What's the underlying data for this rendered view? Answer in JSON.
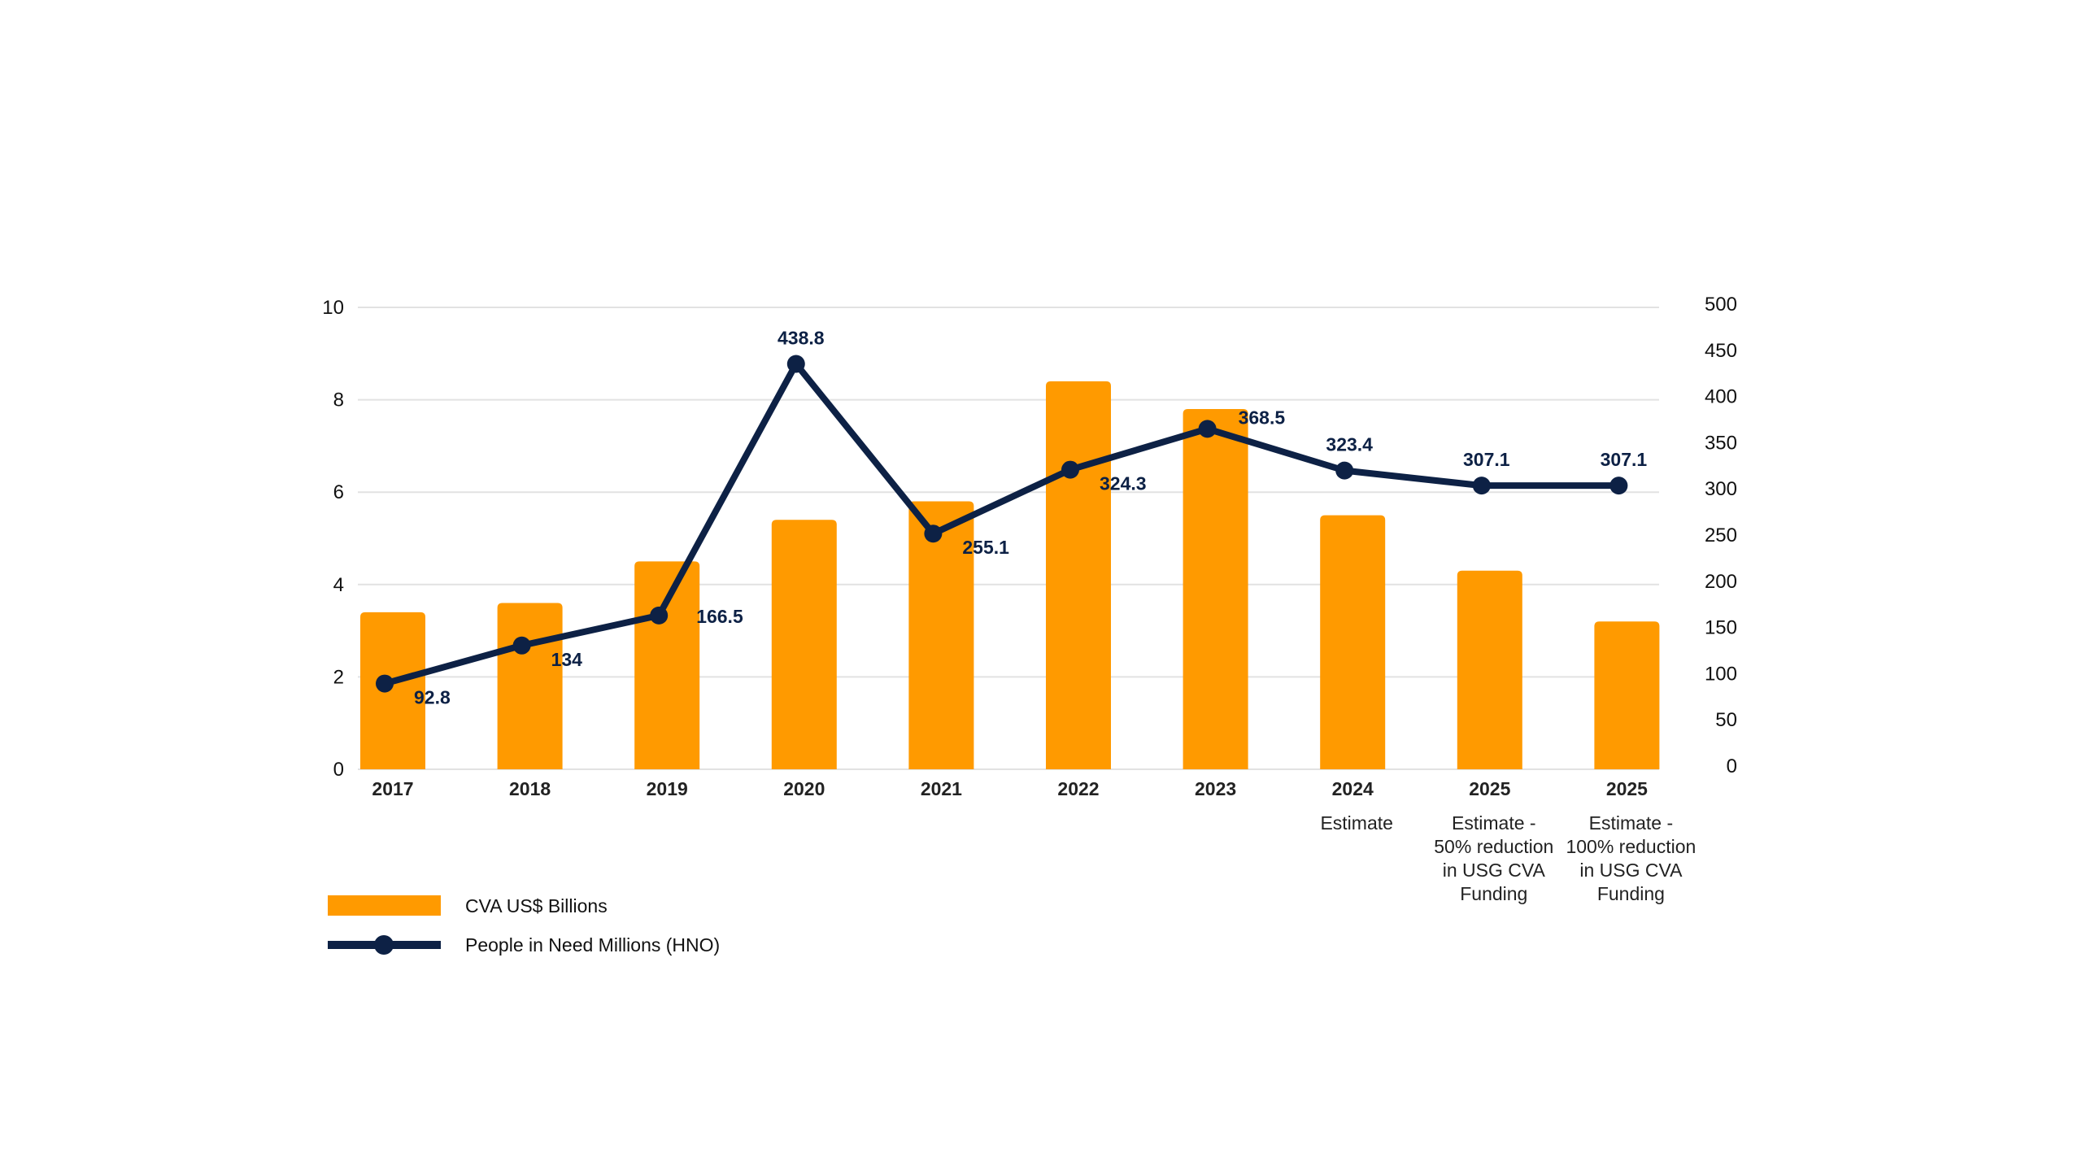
{
  "chart_data": {
    "type": "bar",
    "title": "",
    "xlabel": "",
    "ylabel": "",
    "categories": [
      {
        "label": "2017",
        "sublabel": []
      },
      {
        "label": "2018",
        "sublabel": []
      },
      {
        "label": "2019",
        "sublabel": []
      },
      {
        "label": "2020",
        "sublabel": []
      },
      {
        "label": "2021",
        "sublabel": []
      },
      {
        "label": "2022",
        "sublabel": []
      },
      {
        "label": "2023",
        "sublabel": []
      },
      {
        "label": "2024",
        "sublabel": [
          "Estimate"
        ]
      },
      {
        "label": "2025",
        "sublabel": [
          "Estimate -",
          "50% reduction",
          "in USG CVA",
          "Funding"
        ]
      },
      {
        "label": "2025",
        "sublabel": [
          "Estimate -",
          "100% reduction",
          "in USG CVA",
          "Funding"
        ]
      }
    ],
    "series": [
      {
        "name": "CVA US$ Billions",
        "type": "bar",
        "axis": "left",
        "color": "#ff9a00",
        "values": [
          3.4,
          3.6,
          4.5,
          5.4,
          5.8,
          8.4,
          7.8,
          5.5,
          4.3,
          3.2
        ]
      },
      {
        "name": "People in Need Millions (HNO)",
        "type": "line",
        "axis": "right",
        "color": "#0d2145",
        "values": [
          92.8,
          134,
          166.5,
          438.8,
          255.1,
          324.3,
          368.5,
          323.4,
          307.1,
          307.1
        ],
        "data_labels": [
          "92.8",
          "134",
          "166.5",
          "438.8",
          "255.1",
          "324.3",
          "368.5",
          "323.4",
          "307.1",
          "307.1"
        ]
      }
    ],
    "y_left": {
      "ylim": [
        0,
        10
      ],
      "ticks": [
        0,
        2,
        4,
        6,
        8,
        10
      ]
    },
    "y_right": {
      "ylim": [
        0,
        500
      ],
      "ticks": [
        0,
        50,
        100,
        150,
        200,
        250,
        300,
        350,
        400,
        450,
        500
      ]
    },
    "grid": true,
    "legend": {
      "placement": "bottom-left",
      "entries": [
        "CVA US$ Billions",
        "People in Need Millions (HNO)"
      ]
    }
  }
}
